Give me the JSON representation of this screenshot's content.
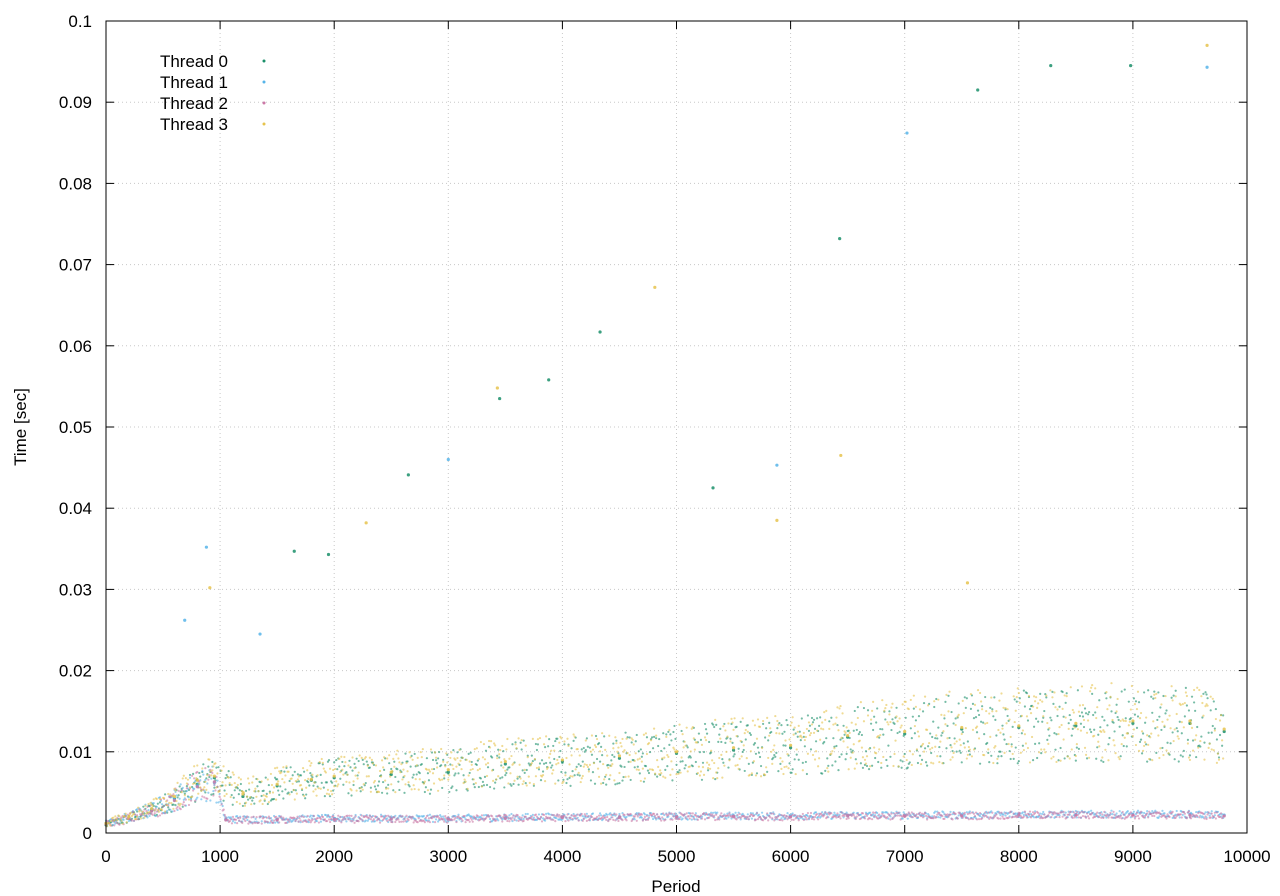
{
  "chart_data": {
    "type": "scatter",
    "title": "",
    "xlabel": "Period",
    "ylabel": "Time [sec]",
    "xlim": [
      0,
      10000
    ],
    "ylim": [
      0,
      0.1
    ],
    "xticks": [
      0,
      1000,
      2000,
      3000,
      4000,
      5000,
      6000,
      7000,
      8000,
      9000,
      10000
    ],
    "yticks": [
      0,
      0.01,
      0.02,
      0.03,
      0.04,
      0.05,
      0.06,
      0.07,
      0.08,
      0.09,
      0.1
    ],
    "xtick_labels": [
      "0",
      "1000",
      "2000",
      "3000",
      "4000",
      "5000",
      "6000",
      "7000",
      "8000",
      "9000",
      "10000"
    ],
    "ytick_labels": [
      "0",
      "0.01",
      "0.02",
      "0.03",
      "0.04",
      "0.05",
      "0.06",
      "0.07",
      "0.08",
      "0.09",
      "0.1"
    ],
    "grid": true,
    "legend_position": "top-left",
    "series": [
      {
        "name": "Thread 0",
        "color": "#1a8f6a",
        "points": [
          [
            0,
            0.001
          ],
          [
            200,
            0.0018
          ],
          [
            400,
            0.0028
          ],
          [
            600,
            0.0042
          ],
          [
            800,
            0.006
          ],
          [
            950,
            0.0068
          ],
          [
            1200,
            0.0045
          ],
          [
            1500,
            0.0058
          ],
          [
            1800,
            0.0065
          ],
          [
            2000,
            0.0068
          ],
          [
            2500,
            0.0072
          ],
          [
            3000,
            0.0075
          ],
          [
            3500,
            0.0085
          ],
          [
            4000,
            0.0088
          ],
          [
            4500,
            0.0092
          ],
          [
            5000,
            0.0098
          ],
          [
            5500,
            0.0102
          ],
          [
            6000,
            0.0105
          ],
          [
            6500,
            0.0118
          ],
          [
            7000,
            0.0122
          ],
          [
            7500,
            0.0128
          ],
          [
            8000,
            0.013
          ],
          [
            8500,
            0.0132
          ],
          [
            9000,
            0.0135
          ],
          [
            9500,
            0.0135
          ],
          [
            9800,
            0.0125
          ],
          [
            1650,
            0.0347
          ],
          [
            1950,
            0.0343
          ],
          [
            2650,
            0.0441
          ],
          [
            3450,
            0.0535
          ],
          [
            3880,
            0.0558
          ],
          [
            4330,
            0.0617
          ],
          [
            5320,
            0.0425
          ],
          [
            6430,
            0.0732
          ],
          [
            7640,
            0.0915
          ],
          [
            8280,
            0.0945
          ],
          [
            8980,
            0.0945
          ]
        ]
      },
      {
        "name": "Thread 1",
        "color": "#56b4e9",
        "points": [
          [
            0,
            0.0012
          ],
          [
            200,
            0.0019
          ],
          [
            400,
            0.0029
          ],
          [
            600,
            0.0041
          ],
          [
            800,
            0.0058
          ],
          [
            950,
            0.0062
          ],
          [
            1050,
            0.0017
          ],
          [
            1500,
            0.0017
          ],
          [
            2000,
            0.0018
          ],
          [
            2500,
            0.0018
          ],
          [
            3000,
            0.0018
          ],
          [
            3500,
            0.0019
          ],
          [
            4000,
            0.002
          ],
          [
            4500,
            0.002
          ],
          [
            5000,
            0.0021
          ],
          [
            5500,
            0.0021
          ],
          [
            6000,
            0.0021
          ],
          [
            6500,
            0.0022
          ],
          [
            7000,
            0.0022
          ],
          [
            7500,
            0.0022
          ],
          [
            8000,
            0.0023
          ],
          [
            8500,
            0.0023
          ],
          [
            9000,
            0.0023
          ],
          [
            9500,
            0.0023
          ],
          [
            9800,
            0.0022
          ],
          [
            690,
            0.0262
          ],
          [
            880,
            0.0352
          ],
          [
            1350,
            0.0245
          ],
          [
            3000,
            0.046
          ],
          [
            5880,
            0.0453
          ],
          [
            7020,
            0.0862
          ],
          [
            9650,
            0.0943
          ]
        ]
      },
      {
        "name": "Thread 2",
        "color": "#cc79a7",
        "points": [
          [
            0,
            0.0011
          ],
          [
            200,
            0.0018
          ],
          [
            400,
            0.0027
          ],
          [
            600,
            0.004
          ],
          [
            800,
            0.0057
          ],
          [
            950,
            0.0063
          ],
          [
            1050,
            0.0016
          ],
          [
            1500,
            0.0016
          ],
          [
            2000,
            0.0017
          ],
          [
            2500,
            0.0017
          ],
          [
            3000,
            0.0017
          ],
          [
            3500,
            0.0018
          ],
          [
            4000,
            0.0019
          ],
          [
            4500,
            0.0019
          ],
          [
            5000,
            0.002
          ],
          [
            5500,
            0.002
          ],
          [
            6000,
            0.002
          ],
          [
            6500,
            0.0021
          ],
          [
            7000,
            0.0021
          ],
          [
            7500,
            0.0021
          ],
          [
            8000,
            0.0022
          ],
          [
            8500,
            0.0022
          ],
          [
            9000,
            0.0022
          ],
          [
            9500,
            0.0022
          ],
          [
            9800,
            0.0021
          ]
        ]
      },
      {
        "name": "Thread 3",
        "color": "#e6c34d",
        "points": [
          [
            0,
            0.0012
          ],
          [
            200,
            0.002
          ],
          [
            400,
            0.003
          ],
          [
            600,
            0.0045
          ],
          [
            800,
            0.0065
          ],
          [
            950,
            0.007
          ],
          [
            1200,
            0.0048
          ],
          [
            1500,
            0.006
          ],
          [
            1800,
            0.0066
          ],
          [
            2000,
            0.007
          ],
          [
            2500,
            0.0075
          ],
          [
            3000,
            0.0078
          ],
          [
            3500,
            0.0088
          ],
          [
            4000,
            0.009
          ],
          [
            4500,
            0.0095
          ],
          [
            5000,
            0.01
          ],
          [
            5500,
            0.0105
          ],
          [
            6000,
            0.0108
          ],
          [
            6500,
            0.012
          ],
          [
            7000,
            0.0125
          ],
          [
            7500,
            0.013
          ],
          [
            8000,
            0.0132
          ],
          [
            8500,
            0.0135
          ],
          [
            9000,
            0.0138
          ],
          [
            9500,
            0.0138
          ],
          [
            9800,
            0.0128
          ],
          [
            910,
            0.0302
          ],
          [
            2280,
            0.0382
          ],
          [
            3430,
            0.0548
          ],
          [
            4810,
            0.0672
          ],
          [
            5880,
            0.0385
          ],
          [
            6440,
            0.0465
          ],
          [
            7550,
            0.0308
          ],
          [
            9650,
            0.097
          ]
        ]
      }
    ]
  }
}
